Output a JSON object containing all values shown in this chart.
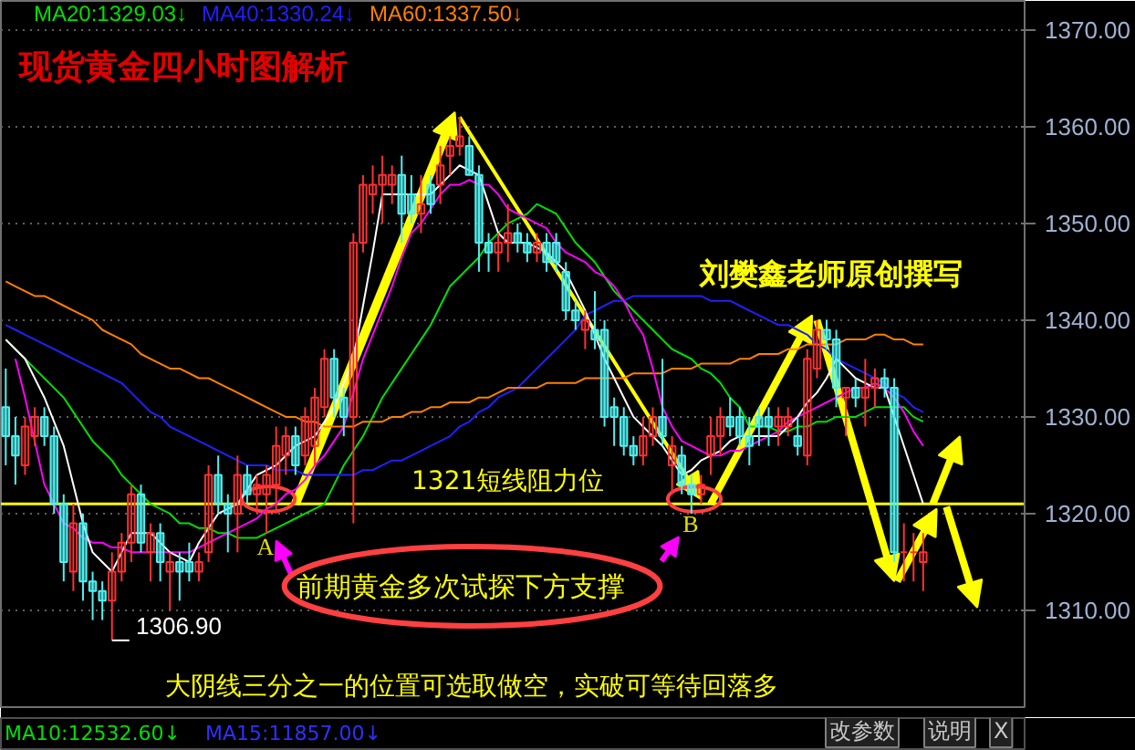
{
  "chart_data": {
    "type": "candlestick",
    "title": "现货黄金四小时图解析",
    "categories": [
      null,
      null,
      null,
      null,
      null,
      null,
      null,
      null,
      null,
      null,
      null,
      null,
      null,
      null,
      null,
      null,
      null,
      null,
      null,
      null,
      null,
      null,
      null,
      null,
      null,
      null,
      null,
      null,
      null,
      null,
      null,
      null,
      null,
      null,
      null,
      null,
      null,
      null,
      null,
      null,
      null,
      null,
      null,
      null,
      null,
      null,
      null,
      null,
      null,
      null,
      null,
      null,
      null,
      null,
      null,
      null,
      null,
      null,
      null,
      null,
      null,
      null,
      null,
      null,
      null,
      null,
      null,
      null,
      null,
      null,
      null,
      null,
      null,
      null,
      null,
      null,
      null,
      null,
      null,
      null,
      null,
      null,
      null,
      null,
      null,
      null,
      null,
      null,
      null,
      null,
      null,
      null,
      null,
      null,
      null,
      null
    ],
    "ohlc": [
      [
        1331,
        1335,
        1325,
        1328
      ],
      [
        1328,
        1330,
        1323,
        1326
      ],
      [
        1325,
        1330,
        1324,
        1329
      ],
      [
        1328,
        1331,
        1327,
        1330
      ],
      [
        1330,
        1331,
        1327,
        1328
      ],
      [
        1328,
        1329,
        1320,
        1321
      ],
      [
        1321,
        1322,
        1313,
        1315
      ],
      [
        1314,
        1321,
        1312,
        1319
      ],
      [
        1319,
        1320,
        1311,
        1313
      ],
      [
        1313,
        1314,
        1309,
        1312
      ],
      [
        1312,
        1313,
        1309,
        1311
      ],
      [
        1311,
        1316,
        1306.9,
        1314
      ],
      [
        1314,
        1318,
        1313,
        1317
      ],
      [
        1317,
        1323,
        1315,
        1322
      ],
      [
        1322,
        1323,
        1316,
        1317
      ],
      [
        1316,
        1319,
        1313,
        1318
      ],
      [
        1318,
        1319,
        1313,
        1315
      ],
      [
        1314,
        1316,
        1310,
        1315
      ],
      [
        1315,
        1316,
        1311,
        1314
      ],
      [
        1315,
        1317,
        1313,
        1314
      ],
      [
        1314,
        1316,
        1313,
        1315
      ],
      [
        1316,
        1325,
        1315,
        1324
      ],
      [
        1324,
        1326,
        1320,
        1321
      ],
      [
        1321,
        1322,
        1316,
        1320
      ],
      [
        1320,
        1326,
        1316,
        1324
      ],
      [
        1324,
        1325,
        1321,
        1322
      ],
      [
        1322,
        1324,
        1320,
        1323
      ],
      [
        1322,
        1325,
        1318,
        1324
      ],
      [
        1323,
        1329,
        1320,
        1327
      ],
      [
        1326,
        1329,
        1324,
        1328
      ],
      [
        1328,
        1329,
        1324,
        1325
      ],
      [
        1326,
        1331,
        1325,
        1330
      ],
      [
        1327,
        1333,
        1325,
        1332
      ],
      [
        1331,
        1337,
        1330,
        1336
      ],
      [
        1336,
        1337,
        1330,
        1332
      ],
      [
        1332,
        1333,
        1328,
        1330
      ],
      [
        1330,
        1349,
        1319,
        1348
      ],
      [
        1348,
        1355,
        1347,
        1354
      ],
      [
        1353,
        1356,
        1351,
        1354
      ],
      [
        1354,
        1357,
        1350,
        1355
      ],
      [
        1354,
        1356,
        1352,
        1355
      ],
      [
        1355,
        1357,
        1348,
        1351
      ],
      [
        1353,
        1355,
        1350,
        1351
      ],
      [
        1351,
        1355,
        1349,
        1352
      ],
      [
        1354,
        1355,
        1351,
        1352
      ],
      [
        1354,
        1358,
        1352,
        1356
      ],
      [
        1357,
        1359,
        1355,
        1358
      ],
      [
        1358,
        1361,
        1357,
        1359
      ],
      [
        1358,
        1359,
        1355,
        1355
      ],
      [
        1355,
        1356,
        1345,
        1348
      ],
      [
        1348,
        1349,
        1345,
        1347
      ],
      [
        1347,
        1349,
        1345,
        1348
      ],
      [
        1348,
        1352,
        1346,
        1349
      ],
      [
        1349,
        1350,
        1347,
        1348
      ],
      [
        1348,
        1349,
        1346,
        1347
      ],
      [
        1347,
        1349,
        1346,
        1348
      ],
      [
        1348,
        1349,
        1345,
        1346
      ],
      [
        1348,
        1349,
        1345,
        1346
      ],
      [
        1345,
        1346,
        1340,
        1341
      ],
      [
        1341,
        1342,
        1339,
        1340
      ],
      [
        1339,
        1341,
        1337,
        1340
      ],
      [
        1339,
        1343,
        1337,
        1338
      ],
      [
        1339,
        1340,
        1329,
        1330
      ],
      [
        1331,
        1332,
        1327,
        1330
      ],
      [
        1330,
        1331,
        1326,
        1327
      ],
      [
        1327,
        1328,
        1325,
        1326
      ],
      [
        1326,
        1330,
        1325,
        1328
      ],
      [
        1328,
        1331,
        1327,
        1330
      ],
      [
        1330,
        1336,
        1327,
        1328
      ],
      [
        1325,
        1328,
        1322,
        1327
      ],
      [
        1326,
        1327,
        1322,
        1323
      ],
      [
        1323,
        1324,
        1320,
        1322
      ],
      [
        1322,
        1324,
        1321,
        1323
      ],
      [
        1326,
        1330,
        1324,
        1328
      ],
      [
        1328,
        1331,
        1326,
        1330
      ],
      [
        1330,
        1332,
        1328,
        1329
      ],
      [
        1330,
        1331,
        1327,
        1328
      ],
      [
        1328,
        1330,
        1325,
        1327
      ],
      [
        1330,
        1331,
        1327,
        1329
      ],
      [
        1330,
        1331,
        1327,
        1329
      ],
      [
        1329,
        1331,
        1327,
        1330
      ],
      [
        1329,
        1331,
        1328,
        1330
      ],
      [
        1328,
        1330,
        1326,
        1327
      ],
      [
        1326,
        1337,
        1325,
        1336
      ],
      [
        1335,
        1340,
        1334,
        1339
      ],
      [
        1339,
        1340,
        1337,
        1338
      ],
      [
        1338,
        1339,
        1331,
        1333
      ],
      [
        1332,
        1333,
        1328,
        1333
      ],
      [
        1333,
        1334,
        1331,
        1332
      ],
      [
        1332,
        1336,
        1329,
        1333
      ],
      [
        1333,
        1335,
        1331,
        1334
      ],
      [
        1334,
        1335,
        1332,
        1333
      ],
      [
        1333,
        1334,
        1315,
        1316
      ],
      [
        1316,
        1319,
        1313,
        1316
      ],
      [
        1316,
        1318,
        1313,
        1316
      ],
      [
        1315,
        1318,
        1312,
        1316
      ]
    ],
    "series": [
      {
        "type": "line",
        "name": "MA20:1329.03↓",
        "color": "#00e000",
        "values": [
          1338,
          1337,
          1336,
          1335,
          1334,
          1333,
          1332,
          1330.5,
          1329,
          1327.5,
          1326.5,
          1325.5,
          1324,
          1323,
          1322,
          1321,
          1320.5,
          1320,
          1319,
          1319,
          1318.5,
          1318.5,
          1318,
          1318,
          1317.5,
          1317.5,
          1317.5,
          1318,
          1318.5,
          1319,
          1319.5,
          1320,
          1320.5,
          1321,
          1323,
          1325,
          1326.5,
          1328,
          1330,
          1332,
          1333.5,
          1335,
          1336.5,
          1338,
          1339.5,
          1341.5,
          1343.5,
          1344.5,
          1345.5,
          1346.5,
          1348,
          1349,
          1350,
          1350.5,
          1351,
          1352,
          1351.5,
          1351,
          1349.5,
          1348,
          1347,
          1346,
          1344.5,
          1343,
          1342,
          1341,
          1340,
          1339,
          1338,
          1337,
          1336.5,
          1336,
          1335,
          1334.5,
          1333.5,
          1332,
          1331,
          1329,
          1329,
          1329,
          1328.5,
          1328.5,
          1329,
          1329,
          1329.5,
          1329.5,
          1330,
          1330,
          1330,
          1330.5,
          1331,
          1331,
          1331,
          1331,
          1330,
          1329.5
        ]
      },
      {
        "type": "line",
        "name": "MA40:1330.24↓",
        "color": "#2020ff",
        "values": [
          1339.5,
          1339,
          1338.5,
          1338,
          1337.5,
          1337,
          1336.5,
          1336,
          1335.5,
          1335,
          1334.5,
          1334,
          1333.5,
          1332.5,
          1331.5,
          1330.5,
          1330,
          1329,
          1328.5,
          1328,
          1327.5,
          1327,
          1326.5,
          1326,
          1325.5,
          1325,
          1325,
          1325,
          1324.5,
          1324.5,
          1324.5,
          1324,
          1324,
          1324,
          1324,
          1324,
          1324,
          1324.5,
          1324.5,
          1325,
          1325.5,
          1325.5,
          1326,
          1326.5,
          1327,
          1327.5,
          1328,
          1329,
          1329.5,
          1330.5,
          1331,
          1332,
          1332.5,
          1333,
          1334,
          1335,
          1336,
          1337,
          1338,
          1339,
          1340.5,
          1341,
          1341.5,
          1342,
          1342,
          1342.5,
          1342.5,
          1342.5,
          1342.5,
          1342.5,
          1342.5,
          1342.5,
          1342.5,
          1342,
          1342,
          1342,
          1341.5,
          1341,
          1340.5,
          1340,
          1339.5,
          1339.5,
          1339,
          1338.5,
          1337.5,
          1337,
          1336,
          1335.5,
          1335,
          1334.5,
          1334,
          1333.5,
          1332.5,
          1332,
          1331,
          1330.5
        ]
      },
      {
        "type": "line",
        "name": "MA60:1337.50↓",
        "color": "#ff8000",
        "values": [
          1344,
          1343.5,
          1343,
          1342.5,
          1342.5,
          1342,
          1341.5,
          1341,
          1340.5,
          1340,
          1339,
          1338.5,
          1338,
          1337.5,
          1336.5,
          1336,
          1335.5,
          1335,
          1335,
          1334.5,
          1334,
          1334,
          1333.5,
          1333,
          1332.5,
          1332,
          1331.5,
          1331,
          1330.5,
          1330,
          1330,
          1329.5,
          1329.5,
          1329,
          1329,
          1329,
          1329,
          1329.5,
          1329.5,
          1329.5,
          1330,
          1330,
          1330.5,
          1330.5,
          1331,
          1331,
          1331.5,
          1331.5,
          1331.5,
          1332,
          1332,
          1332.5,
          1333,
          1333,
          1333,
          1333,
          1333.5,
          1333.5,
          1333.5,
          1333.5,
          1334,
          1334,
          1334,
          1334,
          1334,
          1334.5,
          1334.5,
          1334.5,
          1334.5,
          1335,
          1335,
          1335,
          1335.5,
          1335.5,
          1335.5,
          1335.5,
          1336,
          1336,
          1336.5,
          1336.5,
          1336.5,
          1337,
          1337,
          1337.5,
          1337.5,
          1337.5,
          1337.5,
          1338,
          1338,
          1338,
          1338.5,
          1338.5,
          1338,
          1338,
          1337.5,
          1337.5
        ]
      },
      {
        "type": "line",
        "color": "#ff00ff",
        "values": [
          null,
          1336,
          1332,
          1327.5,
          1323,
          1321,
          1319,
          1318.5,
          1317.5,
          1317,
          1317,
          1316.5,
          1316.5,
          1316,
          1316,
          1316,
          1316,
          1316,
          1316,
          1316,
          1316.5,
          1317,
          1317.5,
          1318,
          1318.5,
          1319,
          1319.5,
          1320.5,
          1321,
          1322,
          1322.5,
          1323.5,
          1325,
          1326,
          1327.5,
          1329,
          1332.5,
          1336,
          1338.5,
          1341,
          1343.5,
          1346.5,
          1349,
          1350,
          1351.5,
          1353,
          1354,
          1354,
          1354.5,
          1354,
          1354,
          1353,
          1351.5,
          1351,
          1350.5,
          1350,
          1349.5,
          1348,
          1347,
          1346.5,
          1346,
          1345,
          1344.5,
          1343.5,
          1342,
          1340,
          1338.5,
          1335,
          1331,
          1329,
          1327.5,
          1327,
          1326.5,
          1326,
          1326,
          1326.5,
          1326.5,
          1327,
          1327.5,
          1328,
          1328.5,
          1329.5,
          1330,
          1330.5,
          1331,
          1331.5,
          1332,
          1332.5,
          1333,
          1333,
          1333.5,
          1333,
          1332,
          1330.5,
          1328.5,
          1327
        ]
      },
      {
        "type": "line",
        "color": "#ffffff",
        "values": [
          1338,
          1337,
          1336,
          1334,
          1332,
          1329.5,
          1327,
          1323,
          1319,
          1316,
          1315,
          1314,
          1316,
          1318,
          1318,
          1318,
          1317,
          1316,
          1315.5,
          1315,
          1317,
          1318.5,
          1320,
          1320.5,
          1321,
          1322.5,
          1324,
          1324.5,
          1325,
          1326,
          1327,
          1327.5,
          1328,
          1329.5,
          1331,
          1333.5,
          1336,
          1341.5,
          1347,
          1353,
          1353,
          1353,
          1353,
          1353,
          1353,
          1354,
          1355,
          1356,
          1355.5,
          1355,
          1352,
          1349,
          1348,
          1348,
          1348,
          1347.5,
          1347,
          1346,
          1345,
          1343,
          1341,
          1338.5,
          1336,
          1334,
          1332,
          1330,
          1329,
          1328,
          1327,
          1325.5,
          1324,
          1324.5,
          1325.5,
          1326,
          1326.5,
          1327.5,
          1328,
          1328,
          1328,
          1328,
          1328,
          1329,
          1330,
          1331.5,
          1332.5,
          1334,
          1336,
          1335,
          1334,
          1333.5,
          1333,
          1333,
          1330,
          1327,
          1324,
          1321
        ]
      }
    ],
    "ylim": [
      1300,
      1373
    ],
    "yticks": [
      {
        "value": 1310,
        "label": "1310.00"
      },
      {
        "value": 1320,
        "label": "1320.00"
      },
      {
        "value": 1330,
        "label": "1330.00"
      },
      {
        "value": 1340,
        "label": "1340.00"
      },
      {
        "value": 1350,
        "label": "1350.00"
      },
      {
        "value": 1360,
        "label": "1360.00"
      },
      {
        "value": 1370,
        "label": "1370.00"
      }
    ],
    "grid": "y",
    "ref_lines": [
      {
        "axis": "y",
        "value": 1321,
        "label": "1321短线阻力位",
        "color": "#ffff00"
      }
    ],
    "annotations": [
      "刘樊鑫老师原创撰写",
      {
        "text": "A",
        "y": 1318
      },
      "B",
      "1306.90",
      "前期黄金多次试探下方支撑",
      "大阴线三分之一的位置可选取做空，实破可等待回落多",
      "MA10:12532.60↓",
      "MA15:11857.00↓",
      "改参数",
      "说明",
      "X"
    ]
  }
}
